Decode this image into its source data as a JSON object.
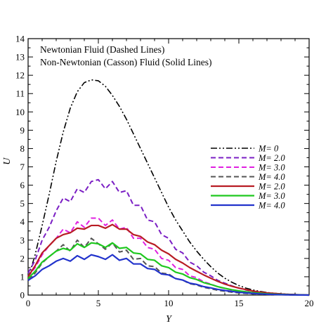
{
  "chart_data": {
    "type": "line",
    "xlabel": "Y",
    "ylabel": "U",
    "xlim": [
      0,
      20
    ],
    "ylim": [
      0,
      14
    ],
    "xticks": [
      0,
      5,
      10,
      15,
      20
    ],
    "yticks": [
      0,
      1,
      2,
      3,
      4,
      5,
      6,
      7,
      8,
      9,
      10,
      11,
      12,
      13,
      14
    ],
    "grid": false,
    "legend_position": "right",
    "annotations": [
      "Newtonian Fluid (Dashed Lines)",
      "Non-Newtonian (Casson) Fluid (Solid Lines)"
    ],
    "series": [
      {
        "name": "M= 0",
        "color": "#000000",
        "style": "dashdotdot",
        "x": [
          0,
          0.5,
          1,
          1.5,
          2,
          2.5,
          3,
          3.5,
          4,
          4.5,
          5,
          5.5,
          6,
          6.5,
          7,
          7.5,
          8,
          8.5,
          9,
          9.5,
          10,
          10.5,
          11,
          11.5,
          12,
          12.5,
          13,
          13.5,
          14,
          14.5,
          15,
          15.5,
          16,
          16.5,
          17,
          17.5,
          18,
          18.5,
          19,
          19.5,
          20
        ],
        "values": [
          0.9,
          2.2,
          3.8,
          5.5,
          7.3,
          8.9,
          10.2,
          11.1,
          11.6,
          11.75,
          11.7,
          11.4,
          10.9,
          10.3,
          9.6,
          8.8,
          8.0,
          7.2,
          6.4,
          5.6,
          4.8,
          4.1,
          3.5,
          2.9,
          2.4,
          1.95,
          1.55,
          1.2,
          0.92,
          0.7,
          0.52,
          0.38,
          0.28,
          0.2,
          0.14,
          0.1,
          0.07,
          0.05,
          0.03,
          0.015,
          0.0
        ]
      },
      {
        "name": "M= 2.0",
        "color": "#7b1fc4",
        "style": "dashed",
        "x": [
          0,
          0.5,
          1,
          1.5,
          2,
          2.5,
          3,
          3.5,
          4,
          4.5,
          5,
          5.5,
          6,
          6.5,
          7,
          7.5,
          8,
          8.5,
          9,
          9.5,
          10,
          10.5,
          11,
          11.5,
          12,
          12.5,
          13,
          13.5,
          14,
          14.5,
          15,
          15.5,
          16,
          16.5,
          17,
          17.5,
          18,
          18.5,
          19,
          19.5,
          20
        ],
        "values": [
          1.2,
          1.9,
          3.0,
          3.7,
          4.6,
          5.3,
          5.1,
          5.8,
          5.6,
          6.2,
          6.3,
          5.8,
          6.2,
          5.6,
          5.7,
          4.9,
          4.9,
          4.1,
          4.0,
          3.3,
          3.1,
          2.5,
          2.3,
          1.8,
          1.6,
          1.25,
          1.05,
          0.8,
          0.65,
          0.5,
          0.38,
          0.28,
          0.2,
          0.14,
          0.1,
          0.07,
          0.05,
          0.03,
          0.02,
          0.01,
          0.0
        ]
      },
      {
        "name": "M= 3.0",
        "color": "#e020e0",
        "style": "dashed",
        "x": [
          0,
          0.5,
          1,
          1.5,
          2,
          2.5,
          3,
          3.5,
          4,
          4.5,
          5,
          5.5,
          6,
          6.5,
          7,
          7.5,
          8,
          8.5,
          9,
          9.5,
          10,
          10.5,
          11,
          11.5,
          12,
          12.5,
          13,
          13.5,
          14,
          14.5,
          15,
          15.5,
          16,
          16.5,
          17,
          17.5,
          18,
          18.5,
          19,
          19.5,
          20
        ],
        "values": [
          1.0,
          1.5,
          2.2,
          2.7,
          3.1,
          3.6,
          3.4,
          4.0,
          3.7,
          4.2,
          4.2,
          3.8,
          4.1,
          3.6,
          3.7,
          3.1,
          3.1,
          2.6,
          2.5,
          2.0,
          1.9,
          1.5,
          1.4,
          1.05,
          0.95,
          0.72,
          0.6,
          0.45,
          0.36,
          0.27,
          0.2,
          0.15,
          0.11,
          0.08,
          0.06,
          0.04,
          0.03,
          0.02,
          0.01,
          0.005,
          0.0
        ]
      },
      {
        "name": "M= 4.0",
        "color": "#555555",
        "style": "dashed",
        "x": [
          0,
          0.5,
          1,
          1.5,
          2,
          2.5,
          3,
          3.5,
          4,
          4.5,
          5,
          5.5,
          6,
          6.5,
          7,
          7.5,
          8,
          8.5,
          9,
          9.5,
          10,
          10.5,
          11,
          11.5,
          12,
          12.5,
          13,
          13.5,
          14,
          14.5,
          15,
          15.5,
          16,
          16.5,
          17,
          17.5,
          18,
          18.5,
          19,
          19.5,
          20
        ],
        "values": [
          0.85,
          1.2,
          1.75,
          2.1,
          2.4,
          2.75,
          2.4,
          3.0,
          2.6,
          3.1,
          2.8,
          2.5,
          2.85,
          2.35,
          2.45,
          1.95,
          2.0,
          1.6,
          1.55,
          1.2,
          1.15,
          0.9,
          0.82,
          0.62,
          0.55,
          0.42,
          0.35,
          0.26,
          0.21,
          0.16,
          0.12,
          0.09,
          0.07,
          0.05,
          0.035,
          0.025,
          0.018,
          0.012,
          0.008,
          0.004,
          0.0
        ]
      },
      {
        "name": "M= 2.0",
        "color": "#b81c24",
        "style": "solid",
        "x": [
          0,
          0.5,
          1,
          1.5,
          2,
          2.5,
          3,
          3.5,
          4,
          4.5,
          5,
          5.5,
          6,
          6.5,
          7,
          7.5,
          8,
          8.5,
          9,
          9.5,
          10,
          10.5,
          11,
          11.5,
          12,
          12.5,
          13,
          13.5,
          14,
          14.5,
          15,
          15.5,
          16,
          16.5,
          17,
          17.5,
          18,
          18.5,
          19,
          19.5,
          20
        ],
        "values": [
          1.0,
          1.6,
          2.3,
          2.7,
          3.1,
          3.3,
          3.4,
          3.65,
          3.6,
          3.8,
          3.8,
          3.65,
          3.85,
          3.6,
          3.6,
          3.3,
          3.2,
          2.9,
          2.75,
          2.45,
          2.25,
          1.95,
          1.75,
          1.5,
          1.3,
          1.1,
          0.92,
          0.75,
          0.6,
          0.48,
          0.38,
          0.3,
          0.22,
          0.16,
          0.12,
          0.09,
          0.06,
          0.04,
          0.025,
          0.012,
          0.0
        ]
      },
      {
        "name": "M= 3.0",
        "color": "#1ec81e",
        "style": "solid",
        "x": [
          0,
          0.5,
          1,
          1.5,
          2,
          2.5,
          3,
          3.5,
          4,
          4.5,
          5,
          5.5,
          6,
          6.5,
          7,
          7.5,
          8,
          8.5,
          9,
          9.5,
          10,
          10.5,
          11,
          11.5,
          12,
          12.5,
          13,
          13.5,
          14,
          14.5,
          15,
          15.5,
          16,
          16.5,
          17,
          17.5,
          18,
          18.5,
          19,
          19.5,
          20
        ],
        "values": [
          0.9,
          1.3,
          1.8,
          2.1,
          2.4,
          2.55,
          2.45,
          2.8,
          2.6,
          2.85,
          2.8,
          2.6,
          2.85,
          2.55,
          2.6,
          2.3,
          2.25,
          1.95,
          1.9,
          1.6,
          1.5,
          1.25,
          1.15,
          0.95,
          0.85,
          0.68,
          0.58,
          0.46,
          0.37,
          0.29,
          0.23,
          0.18,
          0.13,
          0.1,
          0.07,
          0.05,
          0.035,
          0.024,
          0.015,
          0.007,
          0.0
        ]
      },
      {
        "name": "M= 4.0",
        "color": "#2233cc",
        "style": "solid",
        "x": [
          0,
          0.5,
          1,
          1.5,
          2,
          2.5,
          3,
          3.5,
          4,
          4.5,
          5,
          5.5,
          6,
          6.5,
          7,
          7.5,
          8,
          8.5,
          9,
          9.5,
          10,
          10.5,
          11,
          11.5,
          12,
          12.5,
          13,
          13.5,
          14,
          14.5,
          15,
          15.5,
          16,
          16.5,
          17,
          17.5,
          18,
          18.5,
          19,
          19.5,
          20
        ],
        "values": [
          0.8,
          1.05,
          1.4,
          1.6,
          1.85,
          2.0,
          1.85,
          2.15,
          1.95,
          2.2,
          2.1,
          1.95,
          2.2,
          1.9,
          2.0,
          1.7,
          1.7,
          1.45,
          1.4,
          1.15,
          1.1,
          0.9,
          0.82,
          0.65,
          0.58,
          0.46,
          0.39,
          0.31,
          0.25,
          0.2,
          0.15,
          0.12,
          0.09,
          0.065,
          0.045,
          0.032,
          0.022,
          0.015,
          0.009,
          0.004,
          0.0
        ]
      }
    ]
  }
}
